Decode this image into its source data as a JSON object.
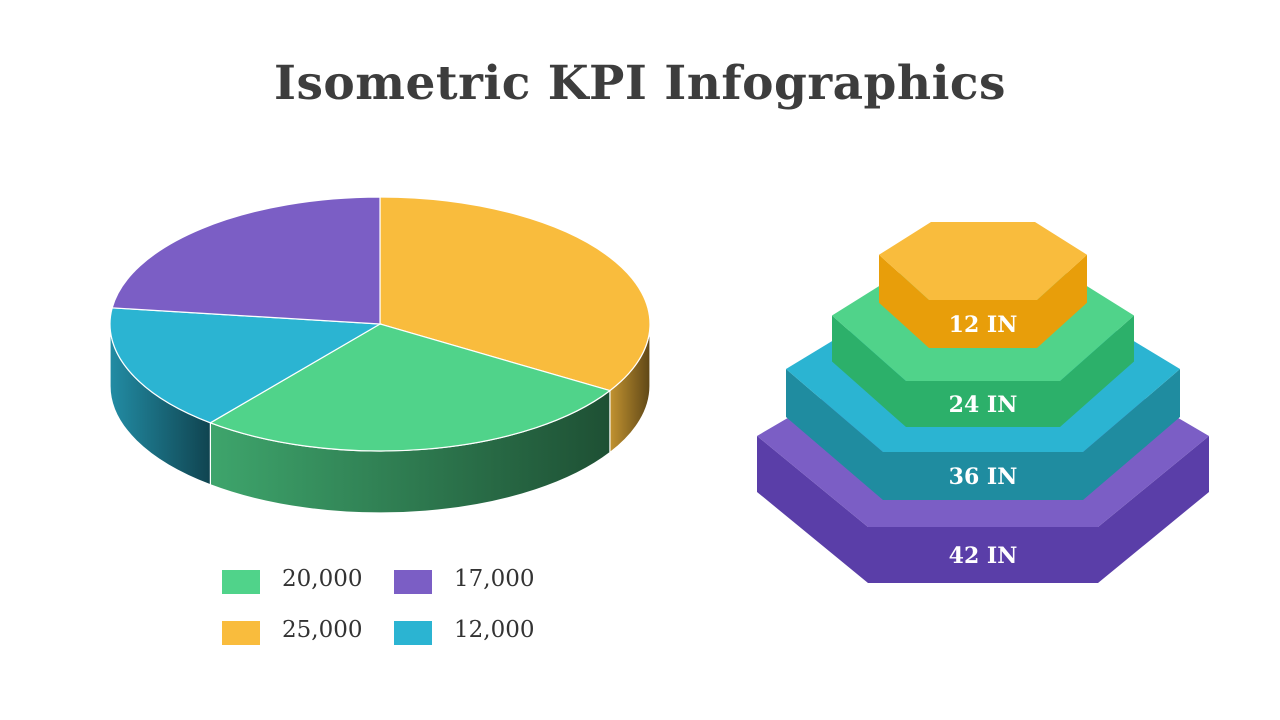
{
  "title": "Isometric KPI Infographics",
  "chart_data": [
    {
      "type": "pie",
      "style": "3d-isometric",
      "slices": [
        {
          "value": 25000,
          "label": "25,000",
          "color": "#F9BC3D"
        },
        {
          "value": 20000,
          "label": "20,000",
          "color": "#50D38A"
        },
        {
          "value": 12000,
          "label": "12,000",
          "color": "#2BB4D2"
        },
        {
          "value": 17000,
          "label": "17,000",
          "color": "#7B5EC5"
        }
      ],
      "legend": [
        {
          "label": "20,000",
          "color": "#50D38A"
        },
        {
          "label": "17,000",
          "color": "#7B5EC5"
        },
        {
          "label": "25,000",
          "color": "#F9BC3D"
        },
        {
          "label": "12,000",
          "color": "#2BB4D2"
        }
      ],
      "legend_position": "bottom"
    },
    {
      "type": "stacked-hexagon",
      "layers": [
        {
          "value": 12,
          "label": "12 IN",
          "top_color": "#F9BC3D",
          "side_color": "#E89E0A"
        },
        {
          "value": 24,
          "label": "24 IN",
          "top_color": "#50D38A",
          "side_color": "#2CB06A"
        },
        {
          "value": 36,
          "label": "36 IN",
          "top_color": "#2BB4D2",
          "side_color": "#1F8CA0"
        },
        {
          "value": 42,
          "label": "42 IN",
          "top_color": "#7B5EC5",
          "side_color": "#5A3EA8"
        }
      ]
    }
  ]
}
